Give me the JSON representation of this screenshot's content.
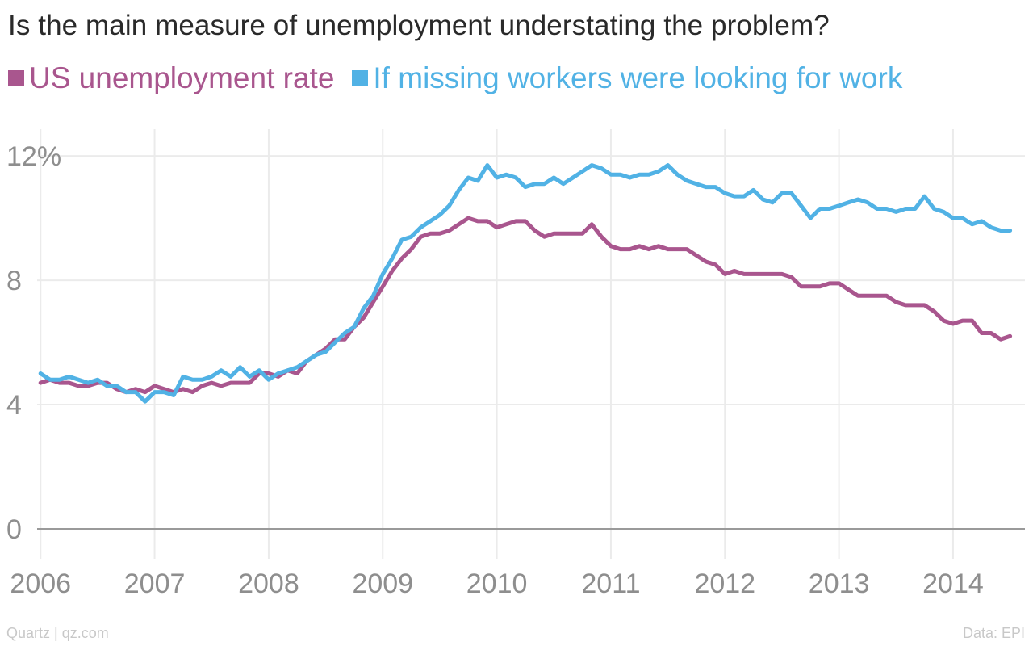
{
  "chart_data": {
    "type": "line",
    "title": "Is the main measure of unemployment understating the problem?",
    "xlabel": "",
    "ylabel": "",
    "x_ticks": [
      "2006",
      "2007",
      "2008",
      "2009",
      "2010",
      "2011",
      "2012",
      "2013",
      "2014"
    ],
    "y_ticks": [
      {
        "value": 0,
        "label": "0"
      },
      {
        "value": 4,
        "label": "4"
      },
      {
        "value": 8,
        "label": "8"
      },
      {
        "value": 12,
        "label": "12%"
      }
    ],
    "xlim": [
      2005.97,
      2014.63
    ],
    "ylim": [
      0,
      12.6
    ],
    "grid": true,
    "legend_position": "top-left",
    "series": [
      {
        "name": "US unemployment rate",
        "color": "#a9568e",
        "x": [
          2006.0,
          2006.083,
          2006.167,
          2006.25,
          2006.333,
          2006.417,
          2006.5,
          2006.583,
          2006.667,
          2006.75,
          2006.833,
          2006.917,
          2007.0,
          2007.083,
          2007.167,
          2007.25,
          2007.333,
          2007.417,
          2007.5,
          2007.583,
          2007.667,
          2007.75,
          2007.833,
          2007.917,
          2008.0,
          2008.083,
          2008.167,
          2008.25,
          2008.333,
          2008.417,
          2008.5,
          2008.583,
          2008.667,
          2008.75,
          2008.833,
          2008.917,
          2009.0,
          2009.083,
          2009.167,
          2009.25,
          2009.333,
          2009.417,
          2009.5,
          2009.583,
          2009.667,
          2009.75,
          2009.833,
          2009.917,
          2010.0,
          2010.083,
          2010.167,
          2010.25,
          2010.333,
          2010.417,
          2010.5,
          2010.583,
          2010.667,
          2010.75,
          2010.833,
          2010.917,
          2011.0,
          2011.083,
          2011.167,
          2011.25,
          2011.333,
          2011.417,
          2011.5,
          2011.583,
          2011.667,
          2011.75,
          2011.833,
          2011.917,
          2012.0,
          2012.083,
          2012.167,
          2012.25,
          2012.333,
          2012.417,
          2012.5,
          2012.583,
          2012.667,
          2012.75,
          2012.833,
          2012.917,
          2013.0,
          2013.083,
          2013.167,
          2013.25,
          2013.333,
          2013.417,
          2013.5,
          2013.583,
          2013.667,
          2013.75,
          2013.833,
          2013.917,
          2014.0,
          2014.083,
          2014.167,
          2014.25,
          2014.333,
          2014.417,
          2014.5
        ],
        "values": [
          4.7,
          4.8,
          4.7,
          4.7,
          4.6,
          4.6,
          4.7,
          4.7,
          4.5,
          4.4,
          4.5,
          4.4,
          4.6,
          4.5,
          4.4,
          4.5,
          4.4,
          4.6,
          4.7,
          4.6,
          4.7,
          4.7,
          4.7,
          5.0,
          5.0,
          4.9,
          5.1,
          5.0,
          5.4,
          5.6,
          5.8,
          6.1,
          6.1,
          6.5,
          6.8,
          7.3,
          7.8,
          8.3,
          8.7,
          9.0,
          9.4,
          9.5,
          9.5,
          9.6,
          9.8,
          10.0,
          9.9,
          9.9,
          9.7,
          9.8,
          9.9,
          9.9,
          9.6,
          9.4,
          9.5,
          9.5,
          9.5,
          9.5,
          9.8,
          9.4,
          9.1,
          9.0,
          9.0,
          9.1,
          9.0,
          9.1,
          9.0,
          9.0,
          9.0,
          8.8,
          8.6,
          8.5,
          8.2,
          8.3,
          8.2,
          8.2,
          8.2,
          8.2,
          8.2,
          8.1,
          7.8,
          7.8,
          7.8,
          7.9,
          7.9,
          7.7,
          7.5,
          7.5,
          7.5,
          7.5,
          7.3,
          7.2,
          7.2,
          7.2,
          7.0,
          6.7,
          6.6,
          6.7,
          6.7,
          6.3,
          6.3,
          6.1,
          6.2
        ]
      },
      {
        "name": "If missing workers were looking for work",
        "color": "#51b2e5",
        "x": [
          2006.0,
          2006.083,
          2006.167,
          2006.25,
          2006.333,
          2006.417,
          2006.5,
          2006.583,
          2006.667,
          2006.75,
          2006.833,
          2006.917,
          2007.0,
          2007.083,
          2007.167,
          2007.25,
          2007.333,
          2007.417,
          2007.5,
          2007.583,
          2007.667,
          2007.75,
          2007.833,
          2007.917,
          2008.0,
          2008.083,
          2008.167,
          2008.25,
          2008.333,
          2008.417,
          2008.5,
          2008.583,
          2008.667,
          2008.75,
          2008.833,
          2008.917,
          2009.0,
          2009.083,
          2009.167,
          2009.25,
          2009.333,
          2009.417,
          2009.5,
          2009.583,
          2009.667,
          2009.75,
          2009.833,
          2009.917,
          2010.0,
          2010.083,
          2010.167,
          2010.25,
          2010.333,
          2010.417,
          2010.5,
          2010.583,
          2010.667,
          2010.75,
          2010.833,
          2010.917,
          2011.0,
          2011.083,
          2011.167,
          2011.25,
          2011.333,
          2011.417,
          2011.5,
          2011.583,
          2011.667,
          2011.75,
          2011.833,
          2011.917,
          2012.0,
          2012.083,
          2012.167,
          2012.25,
          2012.333,
          2012.417,
          2012.5,
          2012.583,
          2012.667,
          2012.75,
          2012.833,
          2012.917,
          2013.0,
          2013.083,
          2013.167,
          2013.25,
          2013.333,
          2013.417,
          2013.5,
          2013.583,
          2013.667,
          2013.75,
          2013.833,
          2013.917,
          2014.0,
          2014.083,
          2014.167,
          2014.25,
          2014.333,
          2014.417,
          2014.5
        ],
        "values": [
          5.0,
          4.8,
          4.8,
          4.9,
          4.8,
          4.7,
          4.8,
          4.6,
          4.6,
          4.4,
          4.4,
          4.1,
          4.4,
          4.4,
          4.3,
          4.9,
          4.8,
          4.8,
          4.9,
          5.1,
          4.9,
          5.2,
          4.9,
          5.1,
          4.8,
          5.0,
          5.1,
          5.2,
          5.4,
          5.6,
          5.7,
          6.0,
          6.3,
          6.5,
          7.1,
          7.5,
          8.2,
          8.7,
          9.3,
          9.4,
          9.7,
          9.9,
          10.1,
          10.4,
          10.9,
          11.3,
          11.2,
          11.7,
          11.3,
          11.4,
          11.3,
          11.0,
          11.1,
          11.1,
          11.3,
          11.1,
          11.3,
          11.5,
          11.7,
          11.6,
          11.4,
          11.4,
          11.3,
          11.4,
          11.4,
          11.5,
          11.7,
          11.4,
          11.2,
          11.1,
          11.0,
          11.0,
          10.8,
          10.7,
          10.7,
          10.9,
          10.6,
          10.5,
          10.8,
          10.8,
          10.4,
          10.0,
          10.3,
          10.3,
          10.4,
          10.5,
          10.6,
          10.5,
          10.3,
          10.3,
          10.2,
          10.3,
          10.3,
          10.7,
          10.3,
          10.2,
          10.0,
          10.0,
          9.8,
          9.9,
          9.7,
          9.6,
          9.6
        ]
      }
    ]
  },
  "footer": {
    "source_left": "Quartz | qz.com",
    "source_right": "Data: EPI"
  }
}
